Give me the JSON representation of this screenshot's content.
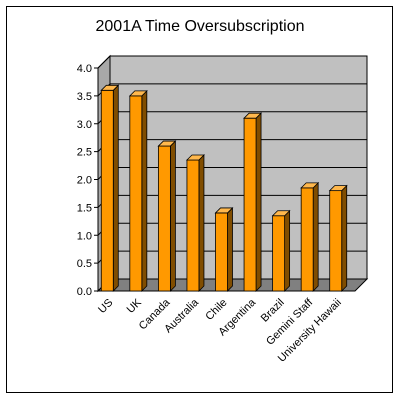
{
  "chart_data": {
    "type": "bar",
    "title": "2001A Time Oversubscription",
    "xlabel": "",
    "ylabel": "",
    "ylim": [
      0,
      4.0
    ],
    "yticks": [
      "0.0",
      "0.5",
      "1.0",
      "1.5",
      "2.0",
      "2.5",
      "3.0",
      "3.5",
      "4.0"
    ],
    "categories": [
      "US",
      "UK",
      "Canada",
      "Australia",
      "Chile",
      "Argentina",
      "Brazil",
      "Gemini Staff",
      "University Hawaii"
    ],
    "values": [
      3.6,
      3.5,
      2.6,
      2.35,
      1.4,
      3.1,
      1.35,
      1.85,
      1.8
    ],
    "grid": true,
    "legend": "none",
    "colors": {
      "bar_front": "#ff9900",
      "bar_side": "#804d00",
      "bar_top": "#ffb84d",
      "wall": "#c0c0c0",
      "floor": "#808080"
    }
  }
}
